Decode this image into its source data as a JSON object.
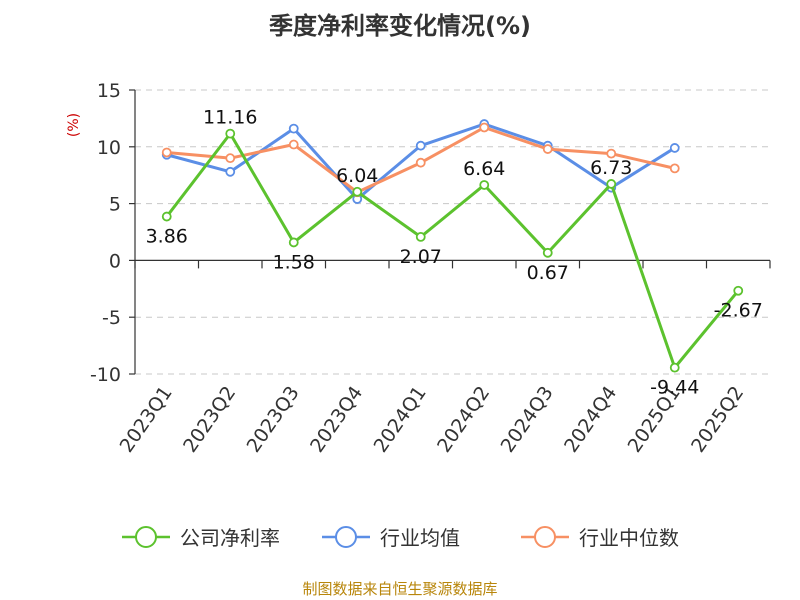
{
  "chart_data": {
    "type": "line",
    "title": "季度净利率变化情况(%)",
    "ylabel": "(%)",
    "ylim": [
      -10,
      15
    ],
    "yticks": [
      15,
      10,
      5,
      0,
      -5,
      -10
    ],
    "categories": [
      "2023Q1",
      "2023Q2",
      "2023Q3",
      "2023Q4",
      "2024Q1",
      "2024Q2",
      "2024Q3",
      "2024Q4",
      "2025Q1",
      "2025Q2"
    ],
    "series": [
      {
        "name": "公司净利率",
        "color": "#5cc22e",
        "values": [
          3.86,
          11.16,
          1.58,
          6.04,
          2.07,
          6.64,
          0.67,
          6.73,
          -9.44,
          -2.67
        ],
        "labels": [
          "3.86",
          "11.16",
          "1.58",
          "6.04",
          "2.07",
          "6.64",
          "0.67",
          "6.73",
          "-9.44",
          "-2.67"
        ]
      },
      {
        "name": "行业均值",
        "color": "#5b8ee6",
        "values": [
          9.3,
          7.8,
          11.6,
          5.4,
          10.1,
          12.0,
          10.1,
          6.4,
          9.9,
          null
        ]
      },
      {
        "name": "行业中位数",
        "color": "#f79063",
        "values": [
          9.5,
          9.0,
          10.2,
          6.0,
          8.6,
          11.7,
          9.8,
          9.4,
          8.1,
          null
        ]
      }
    ],
    "grid": true,
    "legend_position": "bottom"
  },
  "footer": {
    "source": "制图数据来自恒生聚源数据库"
  }
}
